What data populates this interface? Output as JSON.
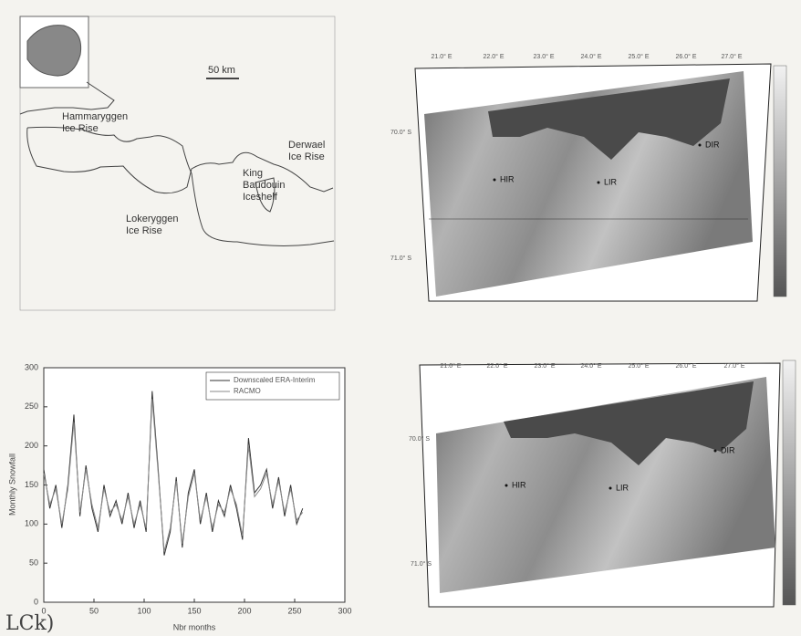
{
  "map": {
    "scale_label": "50 km",
    "labels": [
      {
        "lines": [
          "Hammaryggen",
          "Ice Rise"
        ]
      },
      {
        "lines": [
          "Derwael",
          "Ice Rise"
        ]
      },
      {
        "lines": [
          "King",
          "Baudouin",
          "Iceshelf"
        ]
      },
      {
        "lines": [
          "Lokeryggen",
          "Ice Rise"
        ]
      }
    ]
  },
  "panels": [
    {
      "lon_labels": [
        "21.0° E",
        "22.0° E",
        "23.0° E",
        "24.0° E",
        "25.0° E",
        "26.0° E",
        "27.0° E"
      ],
      "lat_labels": [
        "70.0° S",
        "71.0° S"
      ],
      "points": [
        "HIR",
        "LIR",
        "DIR"
      ]
    },
    {
      "lon_labels": [
        "21.0° E",
        "22.0° E",
        "23.0° E",
        "24.0° E",
        "25.0° E",
        "26.0° E",
        "27.0° E"
      ],
      "lat_labels": [
        "70.0° S",
        "71.0° S"
      ],
      "points": [
        "HIR",
        "LIR",
        "DIR"
      ]
    }
  ],
  "chart_data": {
    "type": "line",
    "xlabel": "Nbr months",
    "ylabel": "Monthly Snowfall",
    "x": [
      0,
      6,
      12,
      18,
      24,
      30,
      36,
      42,
      48,
      54,
      60,
      66,
      72,
      78,
      84,
      90,
      96,
      102,
      108,
      114,
      120,
      126,
      132,
      138,
      144,
      150,
      156,
      162,
      168,
      174,
      180,
      186,
      192,
      198,
      204,
      210,
      216,
      222,
      228,
      234,
      240,
      246,
      252,
      258
    ],
    "series": [
      {
        "name": "Downscaled ERA-Interim",
        "color": "#333333",
        "values": [
          170,
          120,
          150,
          95,
          150,
          240,
          110,
          175,
          120,
          90,
          150,
          110,
          130,
          100,
          140,
          95,
          130,
          90,
          270,
          170,
          60,
          90,
          160,
          70,
          140,
          170,
          100,
          140,
          90,
          130,
          110,
          150,
          120,
          80,
          210,
          140,
          150,
          170,
          120,
          160,
          110,
          150,
          100,
          120
        ]
      },
      {
        "name": "RACMO",
        "color": "#8a8a8a",
        "values": [
          165,
          125,
          145,
          100,
          145,
          230,
          115,
          170,
          125,
          95,
          145,
          115,
          125,
          105,
          135,
          100,
          125,
          95,
          260,
          165,
          65,
          95,
          155,
          75,
          135,
          165,
          105,
          135,
          95,
          125,
          115,
          145,
          125,
          85,
          200,
          135,
          145,
          165,
          125,
          155,
          115,
          145,
          105,
          115
        ]
      }
    ],
    "xlim": [
      0,
      300
    ],
    "xticks": [
      0,
      50,
      100,
      150,
      200,
      250,
      300
    ],
    "ylim": [
      0,
      300
    ],
    "yticks": [
      0,
      50,
      100,
      150,
      200,
      250,
      300
    ],
    "legend": "upper right"
  },
  "handwritten": "LCk)"
}
